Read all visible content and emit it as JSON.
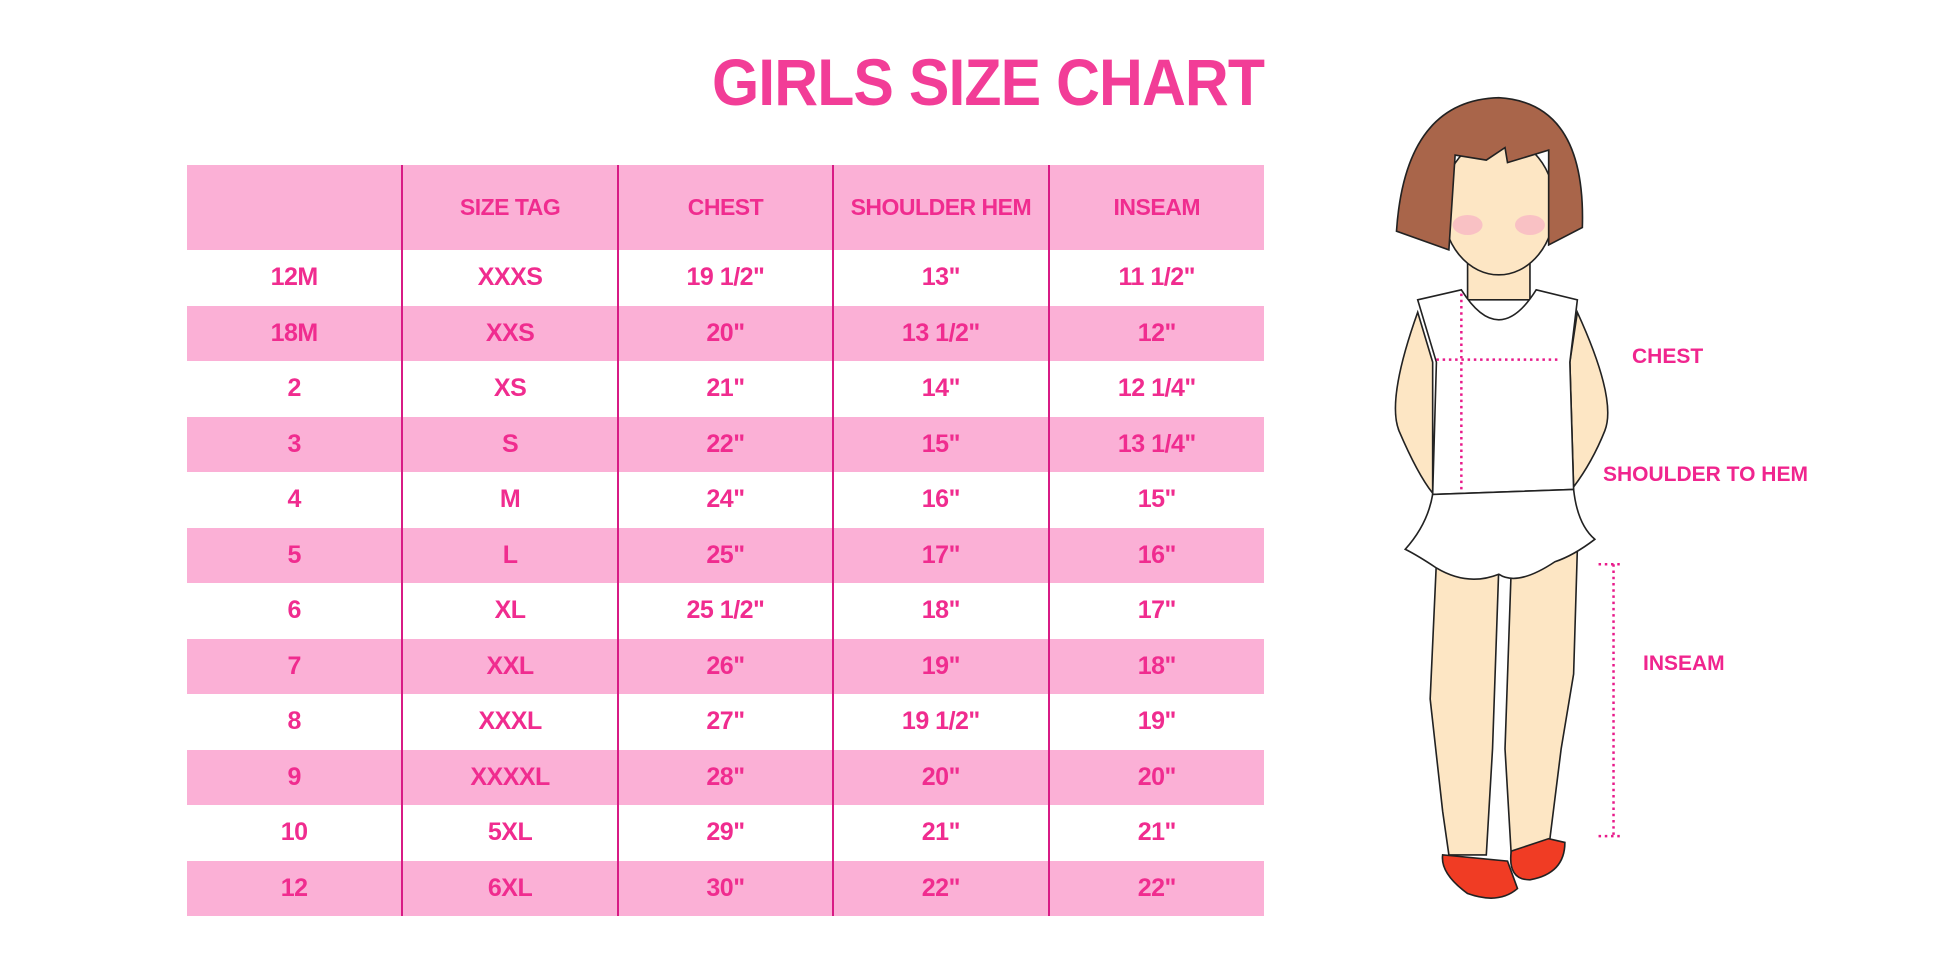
{
  "title": "GIRLS SIZE CHART",
  "colors": {
    "accent": "#f23d97",
    "band": "#fbb0d6",
    "divider": "#d81b85"
  },
  "table": {
    "headers": [
      "",
      "SIZE TAG",
      "CHEST",
      "SHOULDER HEM",
      "INSEAM"
    ],
    "rows": [
      [
        "12M",
        "XXXS",
        "19 1/2\"",
        "13\"",
        "11 1/2\""
      ],
      [
        "18M",
        "XXS",
        "20\"",
        "13 1/2\"",
        "12\""
      ],
      [
        "2",
        "XS",
        "21\"",
        "14\"",
        "12 1/4\""
      ],
      [
        "3",
        "S",
        "22\"",
        "15\"",
        "13 1/4\""
      ],
      [
        "4",
        "M",
        "24\"",
        "16\"",
        "15\""
      ],
      [
        "5",
        "L",
        "25\"",
        "17\"",
        "16\""
      ],
      [
        "6",
        "XL",
        "25 1/2\"",
        "18\"",
        "17\""
      ],
      [
        "7",
        "XXL",
        "26\"",
        "19\"",
        "18\""
      ],
      [
        "8",
        "XXXL",
        "27\"",
        "19 1/2\"",
        "19\""
      ],
      [
        "9",
        "XXXXL",
        "28\"",
        "20\"",
        "20\""
      ],
      [
        "10",
        "5XL",
        "29\"",
        "21\"",
        "21\""
      ],
      [
        "12",
        "6XL",
        "30\"",
        "22\"",
        "22\""
      ]
    ]
  },
  "figure": {
    "labels": {
      "chest": "CHEST",
      "shoulder_to_hem": "SHOULDER TO HEM",
      "inseam": "INSEAM"
    }
  }
}
